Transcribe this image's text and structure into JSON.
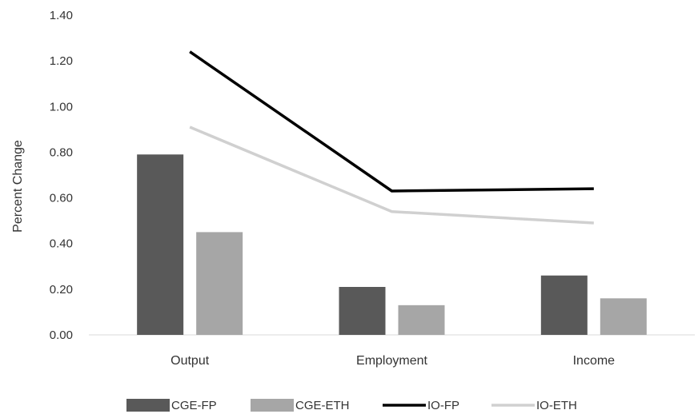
{
  "chart_data": {
    "type": "bar",
    "title": "",
    "xlabel": "",
    "ylabel": "Percent Change",
    "ylim": [
      0,
      1.4
    ],
    "yticks": [
      "0.00",
      "0.20",
      "0.40",
      "0.60",
      "0.80",
      "1.00",
      "1.20",
      "1.40"
    ],
    "categories": [
      "Output",
      "Employment",
      "Income"
    ],
    "grid": false,
    "legend_position": "bottom",
    "series": [
      {
        "name": "CGE-FP",
        "kind": "bar",
        "color": "#595959",
        "values": [
          0.79,
          0.21,
          0.26
        ]
      },
      {
        "name": "CGE-ETH",
        "kind": "bar",
        "color": "#a6a6a6",
        "values": [
          0.45,
          0.13,
          0.16
        ]
      },
      {
        "name": "IO-FP",
        "kind": "line",
        "color": "#000000",
        "values": [
          1.24,
          0.63,
          0.64
        ]
      },
      {
        "name": "IO-ETH",
        "kind": "line",
        "color": "#d0d0d0",
        "values": [
          0.91,
          0.54,
          0.49
        ]
      }
    ]
  }
}
